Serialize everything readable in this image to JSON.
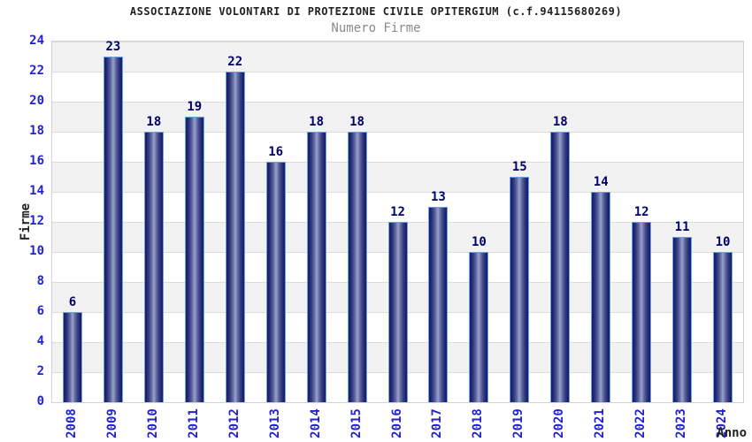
{
  "chart_data": {
    "type": "bar",
    "title": "ASSOCIAZIONE VOLONTARI DI PROTEZIONE CIVILE OPITERGIUM (c.f.94115680269)",
    "subtitle": "Numero Firme",
    "xlabel": "Anno",
    "ylabel": "Firme",
    "categories": [
      "2008",
      "2009",
      "2010",
      "2011",
      "2012",
      "2013",
      "2014",
      "2015",
      "2016",
      "2017",
      "2018",
      "2019",
      "2020",
      "2021",
      "2022",
      "2023",
      "2024"
    ],
    "values": [
      6,
      23,
      18,
      19,
      22,
      16,
      18,
      18,
      12,
      13,
      10,
      15,
      18,
      14,
      12,
      11,
      10
    ],
    "ylim": [
      0,
      24
    ],
    "ytick_step": 2,
    "grid": "horizontal-gridlines-with-alternating-bands",
    "legend": "none",
    "bar_value_labels_shown": true
  },
  "colors": {
    "bar_dark": "#171e6e",
    "bar_highlight": "#9aa2cf",
    "bar_border": "#69a3e4",
    "axis_tick_text": "#2323cc",
    "bar_value_text": "#000066",
    "title_text": "#222222",
    "subtitle_text": "#8a8a8a",
    "band_gray": "#f2f2f2",
    "band_white": "#ffffff",
    "grid_line": "#dcdcdc",
    "plot_border": "#d2d2d2",
    "background": "#ffffff"
  }
}
